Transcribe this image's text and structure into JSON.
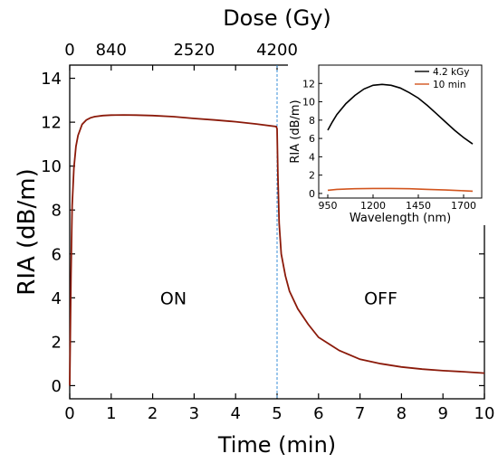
{
  "chart_data": [
    {
      "type": "line",
      "xlabel": "Time (min)",
      "ylabel": "RIA (dB/m)",
      "top_axis_label": "Dose (Gy)",
      "xlim": [
        0,
        10
      ],
      "ylim": [
        -0.6,
        14.6
      ],
      "xticks": [
        "0",
        "1",
        "2",
        "3",
        "4",
        "5",
        "6",
        "7",
        "8",
        "9",
        "10"
      ],
      "yticks": [
        "0",
        "2",
        "4",
        "6",
        "8",
        "10",
        "12",
        "14"
      ],
      "top_ticks": [
        {
          "label": "0",
          "time": 0
        },
        {
          "label": "840",
          "time": 1
        },
        {
          "label": "2520",
          "time": 3
        },
        {
          "label": "4200",
          "time": 5
        }
      ],
      "vline_x": 5,
      "annotations": [
        {
          "text": "ON",
          "x": 2.5,
          "y": 4.0
        },
        {
          "text": "OFF",
          "x": 7.5,
          "y": 4.0
        }
      ],
      "grid": false,
      "colors": {
        "curve": "#8b1a0a",
        "vline": "#3a8fd8"
      },
      "series": [
        {
          "x": [
            0,
            0.03,
            0.06,
            0.1,
            0.15,
            0.2,
            0.3,
            0.4,
            0.5,
            0.6,
            0.8,
            1.0,
            1.3,
            1.6,
            2.0,
            2.5,
            3.0,
            3.5,
            4.0,
            4.5,
            4.98,
            5.0,
            5.02,
            5.05,
            5.1,
            5.2,
            5.3,
            5.5,
            5.75,
            6.0,
            6.5,
            7.0,
            7.5,
            8.0,
            8.5,
            9.0,
            9.5,
            10.0
          ],
          "y": [
            0,
            5.0,
            8.2,
            9.9,
            10.9,
            11.4,
            11.9,
            12.1,
            12.2,
            12.25,
            12.3,
            12.32,
            12.33,
            12.32,
            12.3,
            12.25,
            12.17,
            12.1,
            12.02,
            11.92,
            11.8,
            11.7,
            9.6,
            7.4,
            6.0,
            5.0,
            4.3,
            3.5,
            2.8,
            2.2,
            1.6,
            1.2,
            1.0,
            0.85,
            0.75,
            0.68,
            0.63,
            0.57
          ]
        }
      ]
    },
    {
      "type": "line",
      "xlabel": "Wavelength (nm)",
      "ylabel": "RIA (dB/m)",
      "xlim": [
        900,
        1800
      ],
      "ylim": [
        -0.5,
        14
      ],
      "xticks": [
        "950",
        "1200",
        "1450",
        "1700"
      ],
      "xtick_values": [
        950,
        1200,
        1450,
        1700
      ],
      "yticks": [
        "0",
        "2",
        "4",
        "6",
        "8",
        "10",
        "12"
      ],
      "legend_position": "top-right",
      "series": [
        {
          "name": "4.2 kGy",
          "color": "#000000",
          "x": [
            950,
            975,
            1000,
            1050,
            1100,
            1150,
            1200,
            1250,
            1300,
            1350,
            1400,
            1450,
            1500,
            1550,
            1600,
            1650,
            1700,
            1750
          ],
          "y": [
            6.9,
            7.8,
            8.6,
            9.8,
            10.7,
            11.4,
            11.8,
            11.9,
            11.8,
            11.5,
            11.0,
            10.4,
            9.6,
            8.7,
            7.8,
            6.9,
            6.1,
            5.4
          ]
        },
        {
          "name": "10 min",
          "color": "#d2551e",
          "x": [
            950,
            1000,
            1100,
            1200,
            1300,
            1400,
            1500,
            1600,
            1700,
            1750
          ],
          "y": [
            0.35,
            0.45,
            0.52,
            0.55,
            0.55,
            0.52,
            0.45,
            0.38,
            0.3,
            0.25
          ]
        }
      ]
    }
  ]
}
